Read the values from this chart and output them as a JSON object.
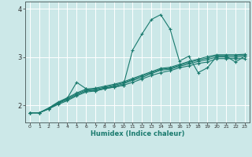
{
  "xlabel": "Humidex (Indice chaleur)",
  "xlim": [
    -0.5,
    23.5
  ],
  "ylim": [
    1.65,
    4.15
  ],
  "yticks": [
    2,
    3,
    4
  ],
  "xticks": [
    0,
    1,
    2,
    3,
    4,
    5,
    6,
    7,
    8,
    9,
    10,
    11,
    12,
    13,
    14,
    15,
    16,
    17,
    18,
    19,
    20,
    21,
    22,
    23
  ],
  "background_color": "#cce8e8",
  "grid_color": "#ffffff",
  "line_color": "#1a7a6e",
  "lines": [
    {
      "x": [
        0,
        1,
        2,
        3,
        4,
        5,
        6,
        7,
        8,
        9,
        10,
        11,
        12,
        13,
        14,
        15,
        16,
        17,
        18,
        19,
        20,
        21,
        22,
        23
      ],
      "y": [
        1.85,
        1.85,
        1.93,
        2.05,
        2.15,
        2.48,
        2.35,
        2.3,
        2.35,
        2.38,
        2.42,
        3.15,
        3.48,
        3.78,
        3.88,
        3.58,
        2.92,
        3.02,
        2.68,
        2.78,
        3.02,
        3.02,
        2.9,
        3.02
      ]
    },
    {
      "x": [
        0,
        1,
        2,
        3,
        4,
        5,
        6,
        7,
        8,
        9,
        10,
        11,
        12,
        13,
        14,
        15,
        16,
        17,
        18,
        19,
        20,
        21,
        22,
        23
      ],
      "y": [
        1.85,
        1.85,
        1.93,
        2.02,
        2.1,
        2.2,
        2.28,
        2.3,
        2.35,
        2.38,
        2.42,
        2.48,
        2.55,
        2.62,
        2.68,
        2.72,
        2.78,
        2.82,
        2.87,
        2.9,
        2.97,
        2.97,
        2.97,
        2.97
      ]
    },
    {
      "x": [
        0,
        1,
        2,
        3,
        4,
        5,
        6,
        7,
        8,
        9,
        10,
        11,
        12,
        13,
        14,
        15,
        16,
        17,
        18,
        19,
        20,
        21,
        22,
        23
      ],
      "y": [
        1.85,
        1.85,
        1.93,
        2.04,
        2.12,
        2.22,
        2.3,
        2.32,
        2.36,
        2.4,
        2.45,
        2.52,
        2.58,
        2.66,
        2.73,
        2.75,
        2.81,
        2.86,
        2.91,
        2.95,
        3.0,
        3.0,
        3.0,
        3.01
      ]
    },
    {
      "x": [
        0,
        1,
        2,
        3,
        4,
        5,
        6,
        7,
        8,
        9,
        10,
        11,
        12,
        13,
        14,
        15,
        16,
        17,
        18,
        19,
        20,
        21,
        22,
        23
      ],
      "y": [
        1.85,
        1.85,
        1.94,
        2.06,
        2.14,
        2.24,
        2.32,
        2.34,
        2.38,
        2.42,
        2.47,
        2.54,
        2.61,
        2.68,
        2.75,
        2.77,
        2.83,
        2.89,
        2.94,
        2.98,
        3.03,
        3.03,
        3.03,
        3.04
      ]
    },
    {
      "x": [
        0,
        1,
        2,
        3,
        4,
        5,
        6,
        7,
        8,
        9,
        10,
        11,
        12,
        13,
        14,
        15,
        16,
        17,
        18,
        19,
        20,
        21,
        22,
        23
      ],
      "y": [
        1.85,
        1.85,
        1.95,
        2.07,
        2.16,
        2.26,
        2.34,
        2.36,
        2.4,
        2.44,
        2.49,
        2.56,
        2.63,
        2.7,
        2.77,
        2.79,
        2.85,
        2.91,
        2.96,
        3.01,
        3.05,
        3.05,
        3.05,
        3.06
      ]
    }
  ]
}
